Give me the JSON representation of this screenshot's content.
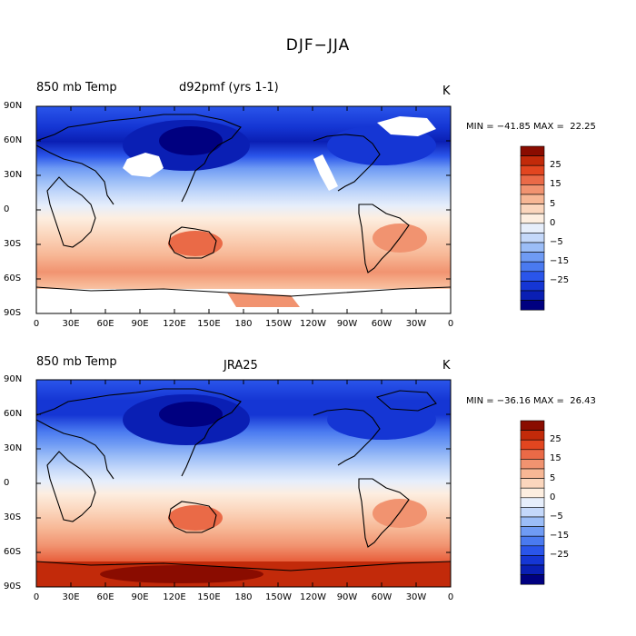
{
  "figure": {
    "title": "DJF−JJA"
  },
  "colors": {
    "levels": [
      "#000080",
      "#0a1fb4",
      "#1536d4",
      "#2a55ea",
      "#4a7af0",
      "#6f9bf4",
      "#9bbdf7",
      "#c4d8fa",
      "#e6eefb",
      "#fdeee0",
      "#fbd6bd",
      "#f7b795",
      "#f19370",
      "#ea6a47",
      "#e24620",
      "#c22a0a",
      "#8a0c00"
    ],
    "land_missing": "#ffffff"
  },
  "colorbar": {
    "labels": [
      "25",
      "15",
      "5",
      "0",
      "−5",
      "−15",
      "−25"
    ]
  },
  "panels": [
    {
      "left_label": "850 mb Temp",
      "center_label": "d92pmf (yrs 1-1)",
      "units": "K",
      "stats": "MIN = −41.85 MAX =  22.25"
    },
    {
      "left_label": "850 mb Temp",
      "center_label": "JRA25",
      "units": "K",
      "stats": "MIN = −36.16 MAX =  26.43"
    }
  ],
  "axes": {
    "lat_labels": [
      "90N",
      "60N",
      "30N",
      "0",
      "30S",
      "60S",
      "90S"
    ],
    "lon_labels": [
      "0",
      "30E",
      "60E",
      "90E",
      "120E",
      "150E",
      "180",
      "150W",
      "120W",
      "90W",
      "60W",
      "30W",
      "0"
    ]
  },
  "chart_data": [
    {
      "type": "heatmap",
      "title": "850 mb Temp d92pmf (yrs 1-1)",
      "units": "K",
      "min": -41.85,
      "max": 22.25,
      "xlim": [
        0,
        360
      ],
      "ylim": [
        -90,
        90
      ],
      "contour_levels": [
        -30,
        -25,
        -20,
        -15,
        -10,
        -5,
        -2.5,
        0,
        2.5,
        5,
        10,
        15,
        20,
        25,
        30
      ],
      "zonal_profile": [
        {
          "lat": 85,
          "value": -20
        },
        {
          "lat": 70,
          "value": -22
        },
        {
          "lat": 60,
          "value": -25
        },
        {
          "lat": 45,
          "value": -20
        },
        {
          "lat": 30,
          "value": -11
        },
        {
          "lat": 15,
          "value": -4
        },
        {
          "lat": 0,
          "value": 1
        },
        {
          "lat": -15,
          "value": 4
        },
        {
          "lat": -30,
          "value": 9
        },
        {
          "lat": -45,
          "value": 12
        },
        {
          "lat": -60,
          "value": 12
        }
      ]
    },
    {
      "type": "heatmap",
      "title": "850 mb Temp JRA25",
      "units": "K",
      "min": -36.16,
      "max": 26.43,
      "xlim": [
        0,
        360
      ],
      "ylim": [
        -90,
        90
      ],
      "contour_levels": [
        -30,
        -25,
        -20,
        -15,
        -10,
        -5,
        -2.5,
        0,
        2.5,
        5,
        10,
        15,
        20,
        25,
        30
      ],
      "zonal_profile": [
        {
          "lat": 85,
          "value": -18
        },
        {
          "lat": 70,
          "value": -20
        },
        {
          "lat": 60,
          "value": -22
        },
        {
          "lat": 45,
          "value": -18
        },
        {
          "lat": 30,
          "value": -10
        },
        {
          "lat": 15,
          "value": -3
        },
        {
          "lat": 0,
          "value": 1
        },
        {
          "lat": -15,
          "value": 4
        },
        {
          "lat": -30,
          "value": 8
        },
        {
          "lat": -45,
          "value": 11
        },
        {
          "lat": -60,
          "value": 12
        },
        {
          "lat": -75,
          "value": 22
        },
        {
          "lat": -85,
          "value": 26
        }
      ]
    }
  ]
}
